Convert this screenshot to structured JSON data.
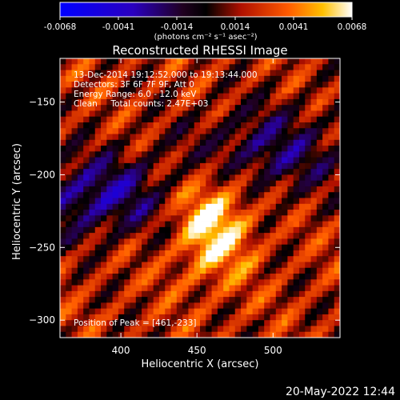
{
  "colorbar": {
    "ticks": [
      "-0.0068",
      "-0.0041",
      "-0.0014",
      "0.0014",
      "0.0041",
      "0.0068"
    ],
    "units": "(photons cm⁻² s⁻¹ asec⁻²)",
    "range": [
      -0.0068,
      0.0068
    ]
  },
  "chart_data": {
    "type": "heatmap",
    "title": "Reconstructed RHESSI Image",
    "xlabel": "Heliocentric X (arcsec)",
    "ylabel": "Heliocentric Y (arcsec)",
    "xlim": [
      360,
      544
    ],
    "ylim": [
      -312,
      -120
    ],
    "xticks": [
      "400",
      "450",
      "500"
    ],
    "yticks": [
      "-150",
      "-200",
      "-250",
      "-300"
    ],
    "peak": [
      461,
      -233
    ],
    "grid": false,
    "annotations": [
      "13-Dec-2014 19:12:52.000 to 19:13:44.000",
      "Detectors: 3F 6F 7F 9F, Att 0",
      "Energy Range: 6.0 - 12.0 keV",
      "Clean     Total counts: 2.47E+03"
    ],
    "peak_label": "Position of Peak = [461,-233]"
  },
  "footer": {
    "timestamp": "20-May-2022 12:44"
  }
}
